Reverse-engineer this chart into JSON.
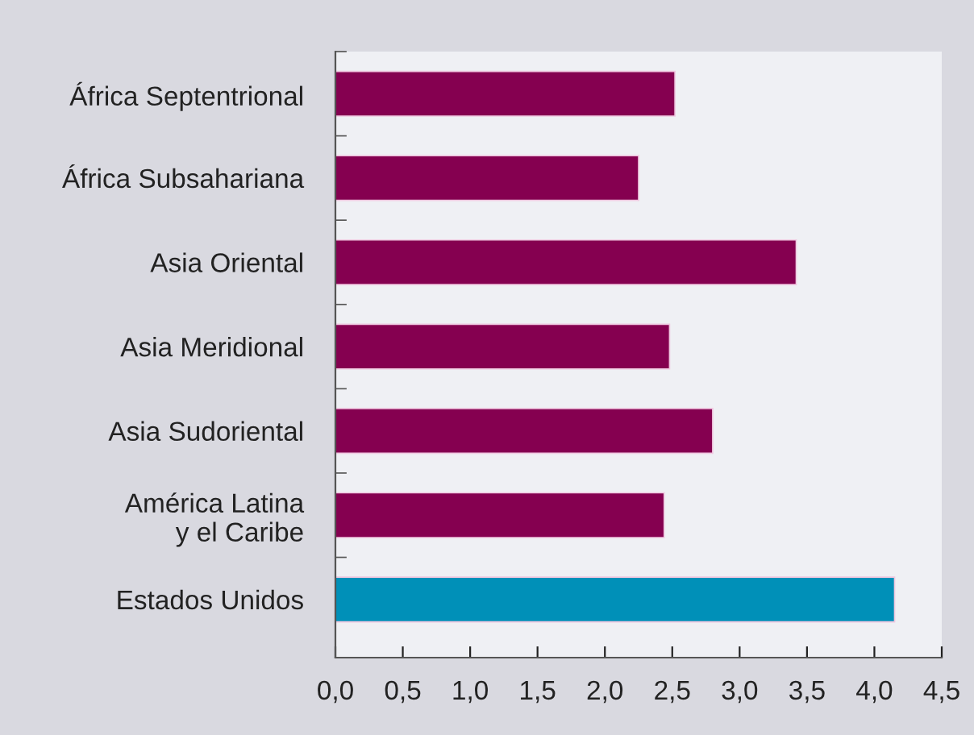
{
  "chart_data": {
    "type": "bar",
    "orientation": "horizontal",
    "categories": [
      "África Septentrional",
      "África Subsahariana",
      "Asia Oriental",
      "Asia Meridional",
      "Asia Sudoriental",
      "América Latina\ny el Caribe",
      "Estados Unidos"
    ],
    "values": [
      2.52,
      2.25,
      3.42,
      2.48,
      2.8,
      2.44,
      4.15
    ],
    "colors": [
      "#850050",
      "#850050",
      "#850050",
      "#850050",
      "#850050",
      "#850050",
      "#0090b8"
    ],
    "xlim": [
      0,
      4.5
    ],
    "xticks": [
      {
        "value": 0,
        "label": "0,0"
      },
      {
        "value": 0.5,
        "label": "0,5"
      },
      {
        "value": 1,
        "label": "1,0"
      },
      {
        "value": 1.5,
        "label": "1,5"
      },
      {
        "value": 2,
        "label": "2,0"
      },
      {
        "value": 2.5,
        "label": "2,5"
      },
      {
        "value": 3,
        "label": "3,0"
      },
      {
        "value": 3.5,
        "label": "3,5"
      },
      {
        "value": 4,
        "label": "4,0"
      },
      {
        "value": 4.5,
        "label": "4,5"
      }
    ],
    "grid": false
  }
}
